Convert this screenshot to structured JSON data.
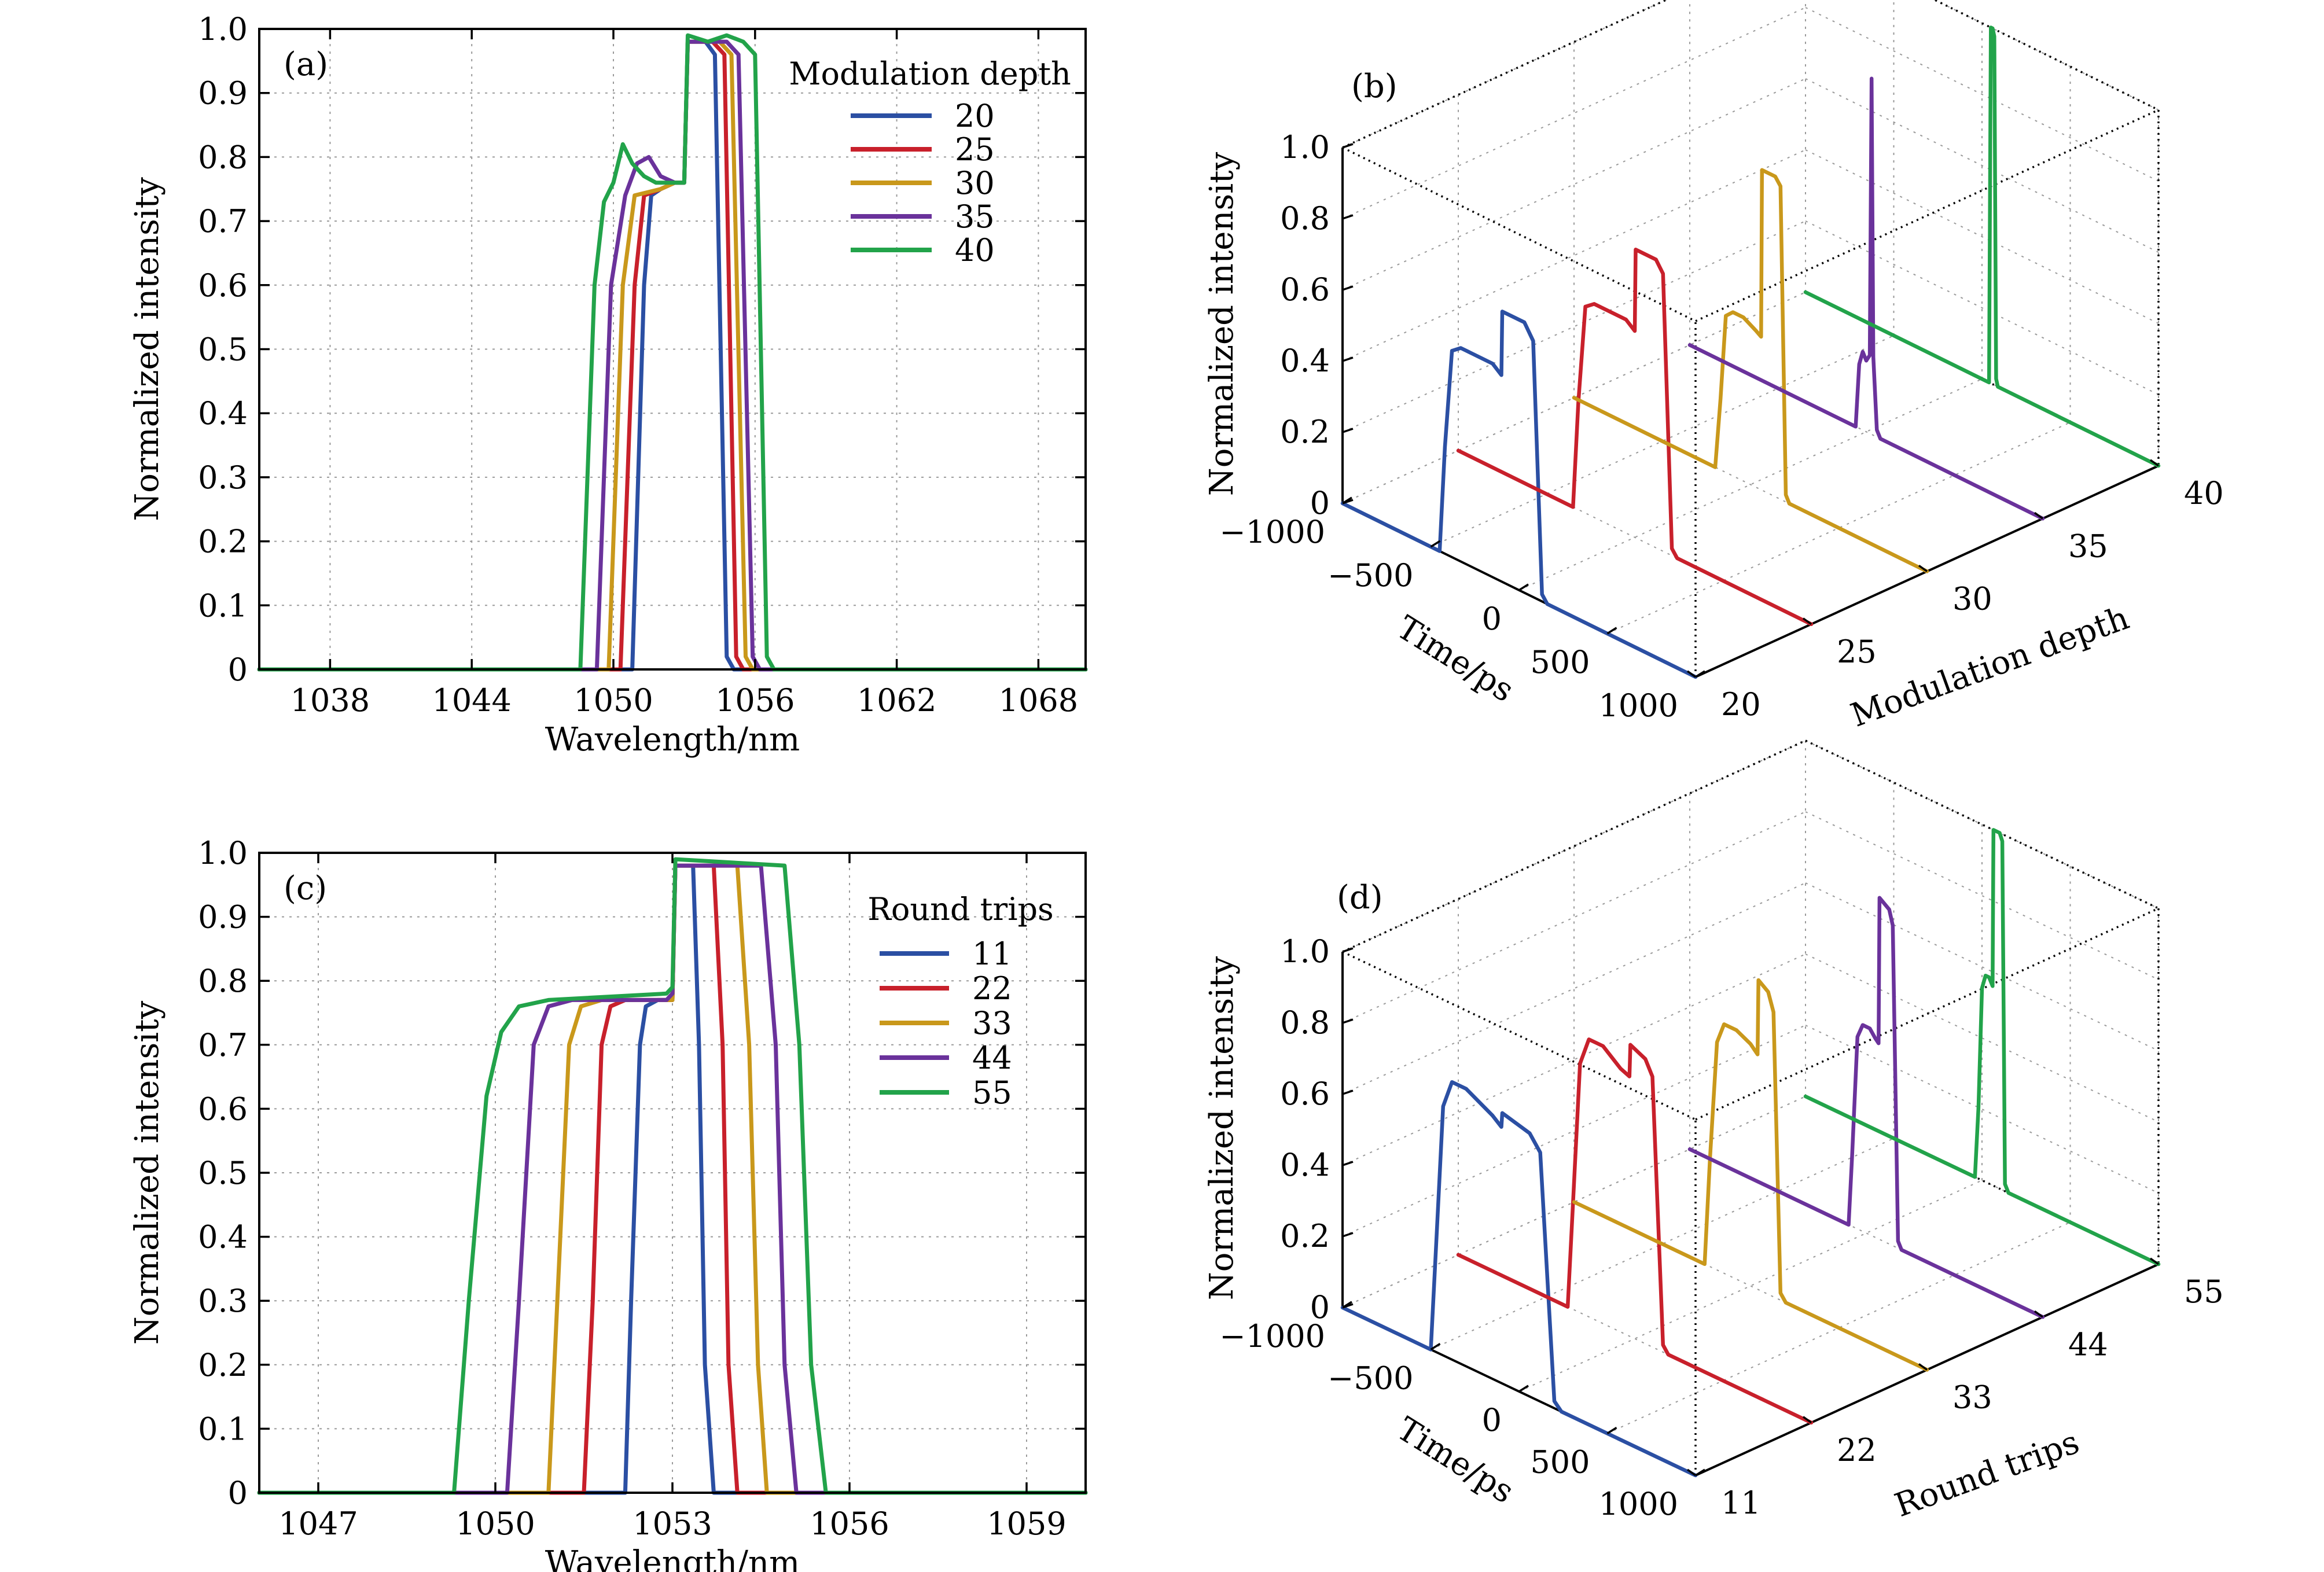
{
  "colors": {
    "blue": "#2b4fa3",
    "red": "#c8202b",
    "gold": "#c9981b",
    "purple": "#6a329b",
    "green": "#22a34a"
  },
  "chart_data": [
    {
      "panel": "(a)",
      "type": "line",
      "xlabel": "Wavelength/nm",
      "ylabel": "Normalized intensity",
      "xlim": [
        1035,
        1070
      ],
      "ylim": [
        0,
        1
      ],
      "xticks": [
        1038,
        1044,
        1050,
        1056,
        1062,
        1068
      ],
      "yticks": [
        0,
        0.1,
        0.2,
        0.3,
        0.4,
        0.5,
        0.6,
        0.7,
        0.8,
        0.9,
        1.0
      ],
      "ytick_labels": [
        "0",
        "0.1",
        "0.2",
        "0.3",
        "0.4",
        "0.5",
        "0.6",
        "0.7",
        "0.8",
        "0.9",
        "1.0"
      ],
      "grid": true,
      "legend_title": "Modulation depth",
      "legend_position": "top-right",
      "series": [
        {
          "name": "20",
          "color": "blue",
          "x": [
            1035,
            1050.8,
            1051.3,
            1051.6,
            1052,
            1052.6,
            1053,
            1053.15,
            1053.9,
            1054.3,
            1054.8,
            1055.1,
            1070
          ],
          "y": [
            0,
            0,
            0.6,
            0.74,
            0.75,
            0.76,
            0.76,
            0.98,
            0.98,
            0.96,
            0.02,
            0,
            0
          ]
        },
        {
          "name": "25",
          "color": "red",
          "x": [
            1035,
            1050.3,
            1050.9,
            1051.3,
            1052,
            1052.6,
            1053,
            1053.15,
            1054.2,
            1054.7,
            1055.2,
            1055.5,
            1070
          ],
          "y": [
            0,
            0,
            0.6,
            0.74,
            0.75,
            0.76,
            0.76,
            0.98,
            0.98,
            0.96,
            0.02,
            0,
            0
          ]
        },
        {
          "name": "30",
          "color": "gold",
          "x": [
            1035,
            1049.8,
            1050.4,
            1050.9,
            1052,
            1052.6,
            1053,
            1053.15,
            1054.5,
            1055.0,
            1055.6,
            1055.9,
            1070
          ],
          "y": [
            0,
            0,
            0.6,
            0.74,
            0.75,
            0.76,
            0.76,
            0.98,
            0.98,
            0.96,
            0.02,
            0,
            0
          ]
        },
        {
          "name": "35",
          "color": "purple",
          "x": [
            1035,
            1049.3,
            1049.9,
            1050.5,
            1051,
            1051.5,
            1052,
            1052.6,
            1053,
            1053.15,
            1054.8,
            1055.3,
            1055.9,
            1056.2,
            1070
          ],
          "y": [
            0,
            0,
            0.6,
            0.74,
            0.79,
            0.8,
            0.77,
            0.76,
            0.76,
            0.98,
            0.98,
            0.96,
            0.02,
            0,
            0
          ]
        },
        {
          "name": "40",
          "color": "green",
          "x": [
            1035,
            1048.6,
            1049.2,
            1049.6,
            1050.0,
            1050.4,
            1050.8,
            1051.3,
            1051.8,
            1052.3,
            1053,
            1053.15,
            1054.0,
            1054.8,
            1055.5,
            1056.0,
            1056.5,
            1056.8,
            1070
          ],
          "y": [
            0,
            0,
            0.6,
            0.73,
            0.76,
            0.82,
            0.79,
            0.77,
            0.76,
            0.76,
            0.76,
            0.99,
            0.98,
            0.99,
            0.98,
            0.96,
            0.02,
            0,
            0
          ]
        }
      ]
    },
    {
      "panel": "(b)",
      "type": "line",
      "projection": "3d",
      "xlabel": "Time/ps",
      "ylabel": "Modulation depth",
      "zlabel": "Normalized intensity",
      "xlim": [
        -1000,
        1000
      ],
      "xticks": [
        -1000,
        -500,
        0,
        500,
        1000
      ],
      "xtick_labels": [
        "−1000",
        "−500",
        "0",
        "500",
        "1000"
      ],
      "yticks": [
        20,
        25,
        30,
        35,
        40
      ],
      "ytick_labels": [
        "20",
        "25",
        "30",
        "35",
        "40"
      ],
      "zlim": [
        0,
        1
      ],
      "zticks": [
        0,
        0.2,
        0.4,
        0.6,
        0.8,
        1.0
      ],
      "ztick_labels": [
        "0",
        "0.2",
        "0.4",
        "0.6",
        "0.8",
        "1.0"
      ],
      "grid": true,
      "series": [
        {
          "name": "20",
          "color": "blue",
          "x": [
            -1000,
            -450,
            -420,
            -380,
            -330,
            -250,
            -150,
            -100,
            -95,
            30,
            80,
            130,
            160,
            1000
          ],
          "y": [
            20,
            20,
            20,
            20,
            20,
            20,
            20,
            20,
            20,
            20,
            20,
            20,
            20,
            20
          ],
          "z": [
            0,
            0,
            0.3,
            0.58,
            0.6,
            0.6,
            0.6,
            0.58,
            0.76,
            0.76,
            0.72,
            0.02,
            0,
            0
          ]
        },
        {
          "name": "25",
          "color": "red",
          "x": [
            -1000,
            -350,
            -320,
            -280,
            -230,
            -150,
            -50,
            0,
            5,
            120,
            160,
            210,
            240,
            1000
          ],
          "y": [
            25,
            25,
            25,
            25,
            25,
            25,
            25,
            25,
            25,
            25,
            25,
            25,
            25,
            25
          ],
          "z": [
            0,
            0,
            0.3,
            0.58,
            0.6,
            0.6,
            0.6,
            0.58,
            0.81,
            0.81,
            0.78,
            0.02,
            0,
            0
          ]
        },
        {
          "name": "30",
          "color": "gold",
          "x": [
            -1000,
            -200,
            -170,
            -140,
            -100,
            -40,
            30,
            60,
            65,
            140,
            170,
            200,
            220,
            1000
          ],
          "y": [
            30,
            30,
            30,
            30,
            30,
            30,
            30,
            30,
            30,
            30,
            30,
            30,
            30,
            30
          ],
          "z": [
            0,
            0,
            0.2,
            0.44,
            0.46,
            0.46,
            0.44,
            0.43,
            0.9,
            0.9,
            0.88,
            0.02,
            0,
            0
          ]
        },
        {
          "name": "35",
          "color": "purple",
          "x": [
            -1000,
            -60,
            -40,
            -20,
            0,
            20,
            30,
            40,
            60,
            80,
            1000
          ],
          "y": [
            35,
            35,
            35,
            35,
            35,
            35,
            35,
            35,
            35,
            35,
            35
          ],
          "z": [
            0,
            0,
            0.18,
            0.22,
            0.2,
            0.22,
            1.0,
            0.22,
            0.02,
            0,
            0
          ]
        },
        {
          "name": "40",
          "color": "green",
          "x": [
            -1000,
            40,
            50,
            60,
            70,
            80,
            90,
            1000
          ],
          "y": [
            40,
            40,
            40,
            40,
            40,
            40,
            40,
            40
          ],
          "z": [
            0,
            0,
            1.0,
            1.0,
            0.98,
            0.02,
            0,
            0
          ]
        }
      ]
    },
    {
      "panel": "(c)",
      "type": "line",
      "xlabel": "Wavelength/nm",
      "ylabel": "Normalized intensity",
      "xlim": [
        1046,
        1060
      ],
      "ylim": [
        0,
        1
      ],
      "xticks": [
        1047,
        1050,
        1053,
        1056,
        1059
      ],
      "yticks": [
        0,
        0.1,
        0.2,
        0.3,
        0.4,
        0.5,
        0.6,
        0.7,
        0.8,
        0.9,
        1.0
      ],
      "ytick_labels": [
        "0",
        "0.1",
        "0.2",
        "0.3",
        "0.4",
        "0.5",
        "0.6",
        "0.7",
        "0.8",
        "0.9",
        "1.0"
      ],
      "grid": true,
      "legend_title": "Round trips",
      "legend_position": "top-right",
      "series": [
        {
          "name": "11",
          "color": "blue",
          "x": [
            1046,
            1052.2,
            1052.3,
            1052.45,
            1052.55,
            1052.75,
            1052.9,
            1053.0,
            1053.05,
            1053.35,
            1053.45,
            1053.55,
            1053.7,
            1060
          ],
          "y": [
            0,
            0,
            0.3,
            0.7,
            0.76,
            0.77,
            0.77,
            0.77,
            0.98,
            0.98,
            0.7,
            0.2,
            0,
            0
          ]
        },
        {
          "name": "22",
          "color": "red",
          "x": [
            1046,
            1051.5,
            1051.65,
            1051.8,
            1051.95,
            1052.2,
            1052.9,
            1053.0,
            1053.05,
            1053.7,
            1053.85,
            1053.95,
            1054.1,
            1060
          ],
          "y": [
            0,
            0,
            0.3,
            0.7,
            0.76,
            0.77,
            0.77,
            0.77,
            0.98,
            0.98,
            0.7,
            0.2,
            0,
            0
          ]
        },
        {
          "name": "33",
          "color": "gold",
          "x": [
            1046,
            1050.9,
            1051.05,
            1051.25,
            1051.45,
            1051.8,
            1052.9,
            1053.0,
            1053.05,
            1054.1,
            1054.3,
            1054.45,
            1054.6,
            1060
          ],
          "y": [
            0,
            0,
            0.3,
            0.7,
            0.76,
            0.77,
            0.77,
            0.77,
            0.98,
            0.98,
            0.7,
            0.2,
            0,
            0
          ]
        },
        {
          "name": "44",
          "color": "purple",
          "x": [
            1046,
            1050.2,
            1050.4,
            1050.65,
            1050.9,
            1051.3,
            1052.9,
            1053.0,
            1053.05,
            1054.5,
            1054.75,
            1054.9,
            1055.1,
            1060
          ],
          "y": [
            0,
            0,
            0.3,
            0.7,
            0.76,
            0.77,
            0.77,
            0.78,
            0.98,
            0.98,
            0.7,
            0.2,
            0,
            0
          ]
        },
        {
          "name": "55",
          "color": "green",
          "x": [
            1046,
            1049.3,
            1049.55,
            1049.85,
            1050.1,
            1050.4,
            1050.9,
            1052.9,
            1053.0,
            1053.05,
            1054.9,
            1055.15,
            1055.35,
            1055.6,
            1060
          ],
          "y": [
            0,
            0,
            0.3,
            0.62,
            0.72,
            0.76,
            0.77,
            0.78,
            0.79,
            0.99,
            0.98,
            0.7,
            0.2,
            0,
            0
          ]
        }
      ]
    },
    {
      "panel": "(d)",
      "type": "line",
      "projection": "3d",
      "xlabel": "Time/ps",
      "ylabel": "Round trips",
      "zlabel": "Normalized intensity",
      "xlim": [
        -1000,
        1000
      ],
      "xticks": [
        -1000,
        -500,
        0,
        500,
        1000
      ],
      "xtick_labels": [
        "−1000",
        "−500",
        "0",
        "500",
        "1000"
      ],
      "yticks": [
        11,
        22,
        33,
        44,
        55
      ],
      "ytick_labels": [
        "11",
        "22",
        "33",
        "44",
        "55"
      ],
      "zlim": [
        0,
        1
      ],
      "zticks": [
        0,
        0.2,
        0.4,
        0.6,
        0.8,
        1.0
      ],
      "ztick_labels": [
        "0",
        "0.2",
        "0.4",
        "0.6",
        "0.8",
        "1.0"
      ],
      "grid": true,
      "series": [
        {
          "name": "11",
          "color": "blue",
          "x": [
            -1000,
            -500,
            -470,
            -430,
            -380,
            -300,
            -150,
            -100,
            -95,
            60,
            120,
            200,
            240,
            1000
          ],
          "y": [
            11,
            11,
            11,
            11,
            11,
            11,
            11,
            11,
            11,
            11,
            11,
            11,
            11,
            11
          ],
          "z": [
            0,
            0,
            0.3,
            0.7,
            0.78,
            0.78,
            0.74,
            0.72,
            0.76,
            0.74,
            0.7,
            0.02,
            0,
            0
          ]
        },
        {
          "name": "22",
          "color": "red",
          "x": [
            -1000,
            -380,
            -350,
            -310,
            -260,
            -180,
            -80,
            -30,
            -25,
            60,
            100,
            160,
            190,
            1000
          ],
          "y": [
            22,
            22,
            22,
            22,
            22,
            22,
            22,
            22,
            22,
            22,
            22,
            22,
            22,
            22
          ],
          "z": [
            0,
            0,
            0.3,
            0.7,
            0.78,
            0.78,
            0.74,
            0.73,
            0.82,
            0.8,
            0.76,
            0.02,
            0,
            0
          ]
        },
        {
          "name": "33",
          "color": "gold",
          "x": [
            -1000,
            -260,
            -230,
            -190,
            -150,
            -80,
            0,
            40,
            45,
            100,
            130,
            170,
            200,
            1000
          ],
          "y": [
            33,
            33,
            33,
            33,
            33,
            33,
            33,
            33,
            33,
            33,
            33,
            33,
            33,
            33
          ],
          "z": [
            0,
            0,
            0.3,
            0.64,
            0.7,
            0.7,
            0.68,
            0.66,
            0.87,
            0.85,
            0.8,
            0.02,
            0,
            0
          ]
        },
        {
          "name": "44",
          "color": "purple",
          "x": [
            -1000,
            -100,
            -80,
            -50,
            -20,
            20,
            50,
            70,
            75,
            130,
            150,
            180,
            200,
            1000
          ],
          "y": [
            44,
            44,
            44,
            44,
            44,
            44,
            44,
            44,
            44,
            44,
            44,
            44,
            44,
            44
          ],
          "z": [
            0,
            0,
            0.2,
            0.54,
            0.58,
            0.58,
            0.56,
            0.55,
            0.96,
            0.94,
            0.9,
            0.02,
            0,
            0
          ]
        },
        {
          "name": "55",
          "color": "green",
          "x": [
            -1000,
            -40,
            -20,
            0,
            20,
            40,
            60,
            65,
            100,
            115,
            130,
            150,
            1000
          ],
          "y": [
            55,
            55,
            55,
            55,
            55,
            55,
            55,
            55,
            55,
            55,
            55,
            55,
            55
          ],
          "z": [
            0,
            0,
            0.2,
            0.54,
            0.58,
            0.58,
            0.56,
            1.0,
            1.0,
            0.98,
            0.02,
            0,
            0
          ]
        }
      ]
    }
  ]
}
